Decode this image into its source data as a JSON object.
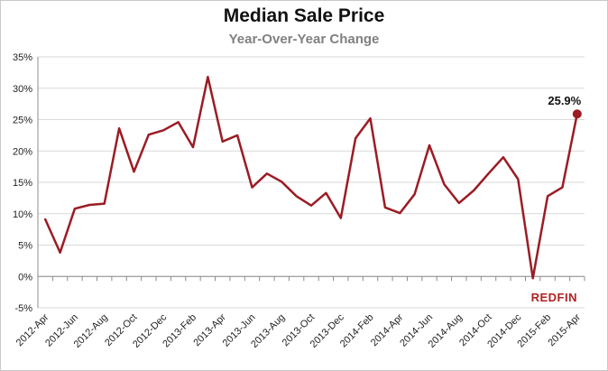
{
  "chart_data": {
    "type": "line",
    "title": "Median Sale Price",
    "subtitle": "Year-Over-Year Change",
    "xlabel": "",
    "ylabel": "",
    "ylim": [
      -5,
      35
    ],
    "y_ticks": [
      "35%",
      "30%",
      "25%",
      "20%",
      "15%",
      "10%",
      "5%",
      "0%",
      "-5%"
    ],
    "y_tick_values": [
      35,
      30,
      25,
      20,
      15,
      10,
      5,
      0,
      -5
    ],
    "x_tick_labels": [
      "2012-Apr",
      "2012-Jun",
      "2012-Aug",
      "2012-Oct",
      "2012-Dec",
      "2013-Feb",
      "2013-Apr",
      "2013-Jun",
      "2013-Aug",
      "2013-Oct",
      "2013-Dec",
      "2014-Feb",
      "2014-Apr",
      "2014-Jun",
      "2014-Aug",
      "2014-Oct",
      "2014-Dec",
      "2015-Feb",
      "2015-Apr"
    ],
    "x": [
      "2012-Apr",
      "2012-May",
      "2012-Jun",
      "2012-Jul",
      "2012-Aug",
      "2012-Sep",
      "2012-Oct",
      "2012-Nov",
      "2012-Dec",
      "2013-Jan",
      "2013-Feb",
      "2013-Mar",
      "2013-Apr",
      "2013-May",
      "2013-Jun",
      "2013-Jul",
      "2013-Aug",
      "2013-Sep",
      "2013-Oct",
      "2013-Nov",
      "2013-Dec",
      "2014-Jan",
      "2014-Feb",
      "2014-Mar",
      "2014-Apr",
      "2014-May",
      "2014-Jun",
      "2014-Jul",
      "2014-Aug",
      "2014-Sep",
      "2014-Oct",
      "2014-Nov",
      "2014-Dec",
      "2015-Jan",
      "2015-Feb",
      "2015-Mar",
      "2015-Apr"
    ],
    "series": [
      {
        "values": [
          9.1,
          3.8,
          10.8,
          11.4,
          11.6,
          23.6,
          16.7,
          22.6,
          23.3,
          24.6,
          20.6,
          31.8,
          21.5,
          22.5,
          14.2,
          16.4,
          15.1,
          12.8,
          11.3,
          13.3,
          9.3,
          22.0,
          25.2,
          11.0,
          10.1,
          13.1,
          20.9,
          14.7,
          11.7,
          13.7,
          16.4,
          19.0,
          15.5,
          -0.3,
          12.8,
          14.2,
          25.9
        ]
      }
    ],
    "annotations": [
      {
        "label": "25.9%"
      }
    ],
    "grid": true,
    "colors": {
      "line": "#9b1c24",
      "grid": "#d9d9d9",
      "axis": "#8c8c8c"
    }
  },
  "branding": {
    "logo_text": "REDFIN",
    "logo_color": "#b22222"
  }
}
